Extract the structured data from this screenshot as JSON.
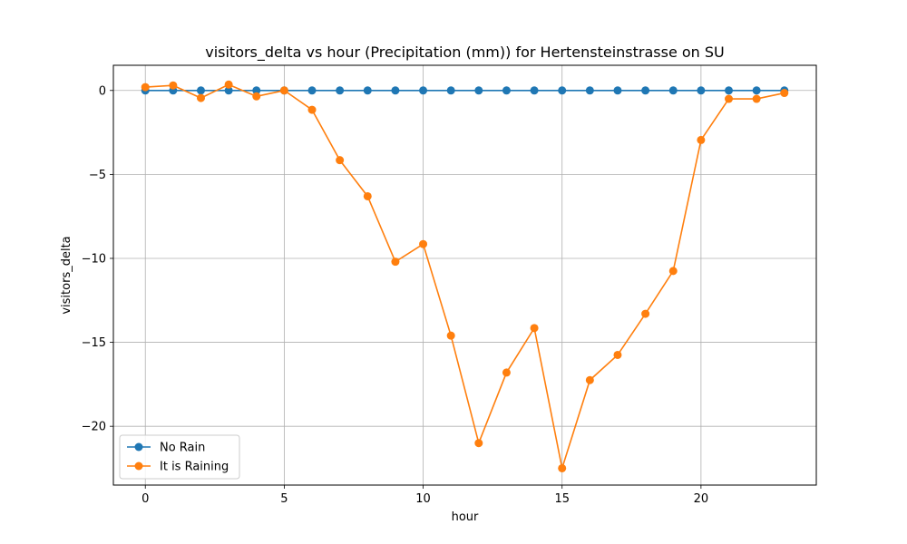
{
  "chart_data": {
    "type": "line",
    "title": "visitors_delta vs hour (Precipitation (mm)) for Hertensteinstrasse on SU",
    "xlabel": "hour",
    "ylabel": "visitors_delta",
    "xlim": [
      -1.15,
      24.15
    ],
    "ylim": [
      -23.5,
      1.5
    ],
    "xticks": [
      0,
      5,
      10,
      15,
      20
    ],
    "yticks": [
      0,
      -5,
      -10,
      -15,
      -20
    ],
    "grid": true,
    "legend_position": "lower-left",
    "x": [
      0,
      1,
      2,
      3,
      4,
      5,
      6,
      7,
      8,
      9,
      10,
      11,
      12,
      13,
      14,
      15,
      16,
      17,
      18,
      19,
      20,
      21,
      22,
      23
    ],
    "series": [
      {
        "name": "No Rain",
        "color": "#1f77b4",
        "values": [
          0,
          0,
          0,
          0,
          0,
          0,
          0,
          0,
          0,
          0,
          0,
          0,
          0,
          0,
          0,
          0,
          0,
          0,
          0,
          0,
          0,
          0,
          0,
          0
        ]
      },
      {
        "name": "It is Raining",
        "color": "#ff7f0e",
        "values": [
          0.2,
          0.3,
          -0.45,
          0.35,
          -0.35,
          0.0,
          -1.15,
          -4.15,
          -6.3,
          -10.2,
          -9.15,
          -14.6,
          -21.0,
          -16.8,
          -14.15,
          -22.5,
          -17.25,
          -15.75,
          -13.3,
          -10.75,
          -2.95,
          -0.5,
          -0.5,
          -0.15
        ]
      }
    ]
  }
}
